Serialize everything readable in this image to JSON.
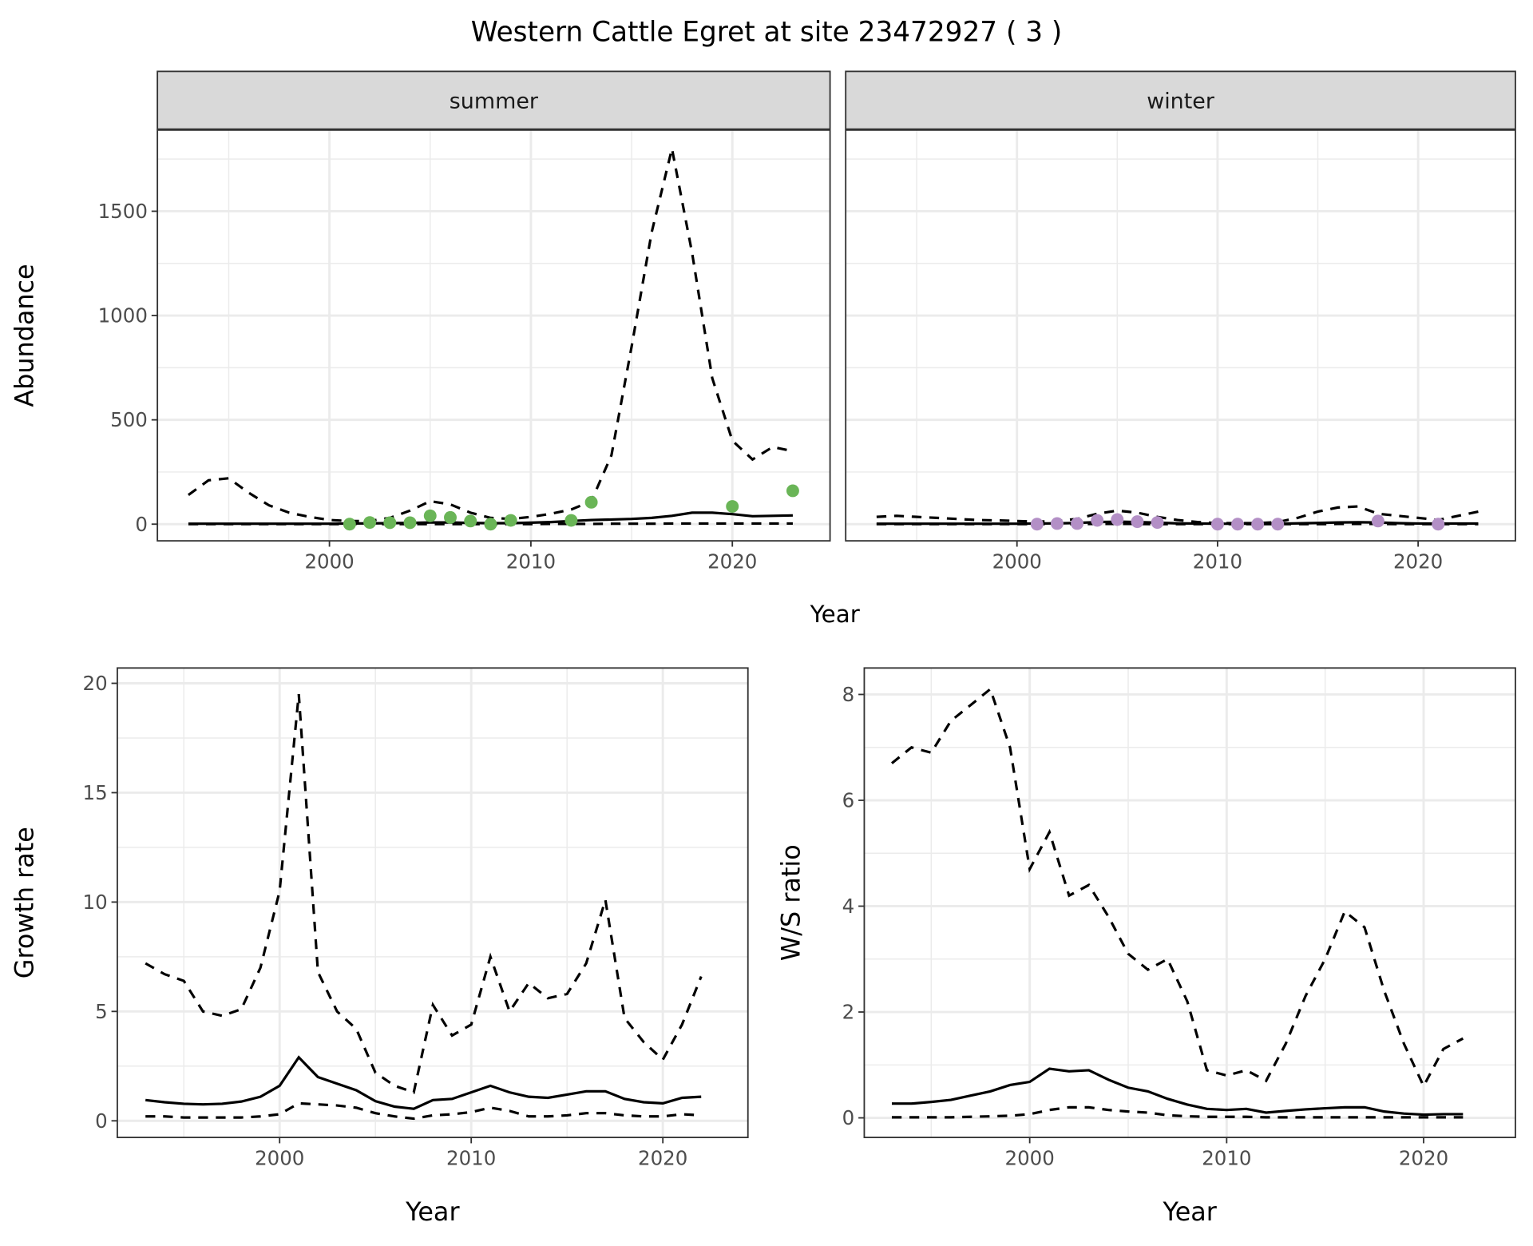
{
  "title": "Western Cattle Egret at site 23472927 ( 3 )",
  "colors": {
    "summer": "#6ab557",
    "winter": "#b38fc6",
    "line": "#000000",
    "grid": "#ebebeb",
    "strip": "#d9d9d9"
  },
  "shared_xlabel": "Year",
  "chart_data": [
    {
      "type": "line",
      "panel": "summer",
      "strip": "summer",
      "ylabel": "Abundance",
      "xlabel": "",
      "xlim": [
        1991.46,
        2024.85
      ],
      "ylim": [
        -80,
        1889
      ],
      "xticks": [
        2000,
        2010,
        2020
      ],
      "yticks": [
        0,
        500,
        1000,
        1500
      ],
      "x": [
        1993,
        1994,
        1995,
        1996,
        1997,
        1998,
        1999,
        2000,
        2001,
        2002,
        2003,
        2004,
        2005,
        2006,
        2007,
        2008,
        2009,
        2010,
        2011,
        2012,
        2013,
        2014,
        2015,
        2016,
        2017,
        2018,
        2019,
        2020,
        2021,
        2022,
        2023
      ],
      "series": [
        {
          "name": "upper",
          "style": "dashed",
          "values": [
            140,
            210,
            220,
            150,
            90,
            55,
            35,
            20,
            15,
            15,
            30,
            65,
            110,
            95,
            55,
            30,
            25,
            35,
            50,
            70,
            110,
            330,
            850,
            1400,
            1800,
            1300,
            700,
            400,
            310,
            370,
            350
          ]
        },
        {
          "name": "estimate",
          "style": "solid",
          "values": [
            2,
            2,
            2,
            2,
            2,
            2,
            2,
            2,
            3,
            4,
            5,
            6,
            8,
            8,
            6,
            5,
            5,
            7,
            10,
            15,
            20,
            22,
            25,
            30,
            40,
            55,
            55,
            48,
            38,
            40,
            42
          ]
        },
        {
          "name": "lower",
          "style": "dashed",
          "values": [
            0,
            0,
            0,
            0,
            0,
            0,
            0,
            0,
            0,
            0,
            0,
            0,
            0,
            0,
            0,
            0,
            0,
            0,
            1,
            1,
            1,
            2,
            2,
            2,
            3,
            3,
            3,
            3,
            3,
            3,
            3
          ]
        }
      ],
      "points": {
        "x": [
          2001,
          2002,
          2003,
          2004,
          2005,
          2006,
          2007,
          2008,
          2009,
          2012,
          2013,
          2020,
          2023
        ],
        "y": [
          0,
          8,
          7,
          7,
          40,
          32,
          15,
          0,
          18,
          18,
          105,
          85,
          160
        ]
      }
    },
    {
      "type": "line",
      "panel": "winter",
      "strip": "winter",
      "ylabel": "",
      "xlabel": "",
      "xlim": [
        1991.46,
        2024.85
      ],
      "ylim": [
        -80,
        1889
      ],
      "xticks": [
        2000,
        2010,
        2020
      ],
      "yticks": [
        0,
        500,
        1000,
        1500
      ],
      "x": [
        1993,
        1994,
        1995,
        1996,
        1997,
        1998,
        1999,
        2000,
        2001,
        2002,
        2003,
        2004,
        2005,
        2006,
        2007,
        2008,
        2009,
        2010,
        2011,
        2012,
        2013,
        2014,
        2015,
        2016,
        2017,
        2018,
        2019,
        2020,
        2021,
        2022,
        2023
      ],
      "series": [
        {
          "name": "upper",
          "style": "dashed",
          "values": [
            35,
            40,
            35,
            30,
            25,
            20,
            18,
            15,
            12,
            15,
            25,
            50,
            65,
            55,
            35,
            20,
            10,
            5,
            5,
            5,
            10,
            30,
            60,
            80,
            85,
            50,
            40,
            30,
            20,
            40,
            60
          ]
        },
        {
          "name": "estimate",
          "style": "solid",
          "values": [
            2,
            2,
            2,
            2,
            2,
            2,
            2,
            2,
            3,
            4,
            6,
            10,
            12,
            10,
            7,
            4,
            3,
            2,
            2,
            2,
            2,
            4,
            6,
            8,
            9,
            8,
            5,
            3,
            3,
            3,
            3
          ]
        },
        {
          "name": "lower",
          "style": "dashed",
          "values": [
            0,
            0,
            0,
            0,
            0,
            0,
            0,
            0,
            0,
            0,
            0,
            1,
            1,
            1,
            0,
            0,
            0,
            0,
            0,
            0,
            0,
            0,
            0,
            1,
            1,
            1,
            0,
            0,
            0,
            0,
            0
          ]
        }
      ],
      "points": {
        "x": [
          2001,
          2002,
          2003,
          2004,
          2005,
          2006,
          2007,
          2010,
          2011,
          2012,
          2013,
          2018,
          2021
        ],
        "y": [
          0,
          3,
          3,
          18,
          22,
          12,
          8,
          0,
          0,
          0,
          0,
          15,
          0
        ]
      }
    },
    {
      "type": "line",
      "panel": "growth",
      "ylabel": "Growth rate",
      "xlabel": "Year",
      "xlim": [
        1991.53,
        2024.44
      ],
      "ylim": [
        -0.76,
        20.7
      ],
      "xticks": [
        2000,
        2010,
        2020
      ],
      "yticks": [
        0,
        5,
        10,
        15,
        20
      ],
      "x": [
        1993,
        1994,
        1995,
        1996,
        1997,
        1998,
        1999,
        2000,
        2001,
        2002,
        2003,
        2004,
        2005,
        2006,
        2007,
        2008,
        2009,
        2010,
        2011,
        2012,
        2013,
        2014,
        2015,
        2016,
        2017,
        2018,
        2019,
        2020,
        2021,
        2022
      ],
      "series": [
        {
          "name": "upper",
          "style": "dashed",
          "values": [
            7.2,
            6.7,
            6.4,
            5.0,
            4.8,
            5.1,
            7.0,
            10.5,
            19.5,
            6.8,
            5.0,
            4.2,
            2.2,
            1.6,
            1.3,
            5.3,
            3.9,
            4.4,
            7.5,
            5.0,
            6.3,
            5.6,
            5.8,
            7.2,
            10.1,
            4.7,
            3.6,
            2.8,
            4.4,
            6.6
          ]
        },
        {
          "name": "estimate",
          "style": "solid",
          "values": [
            0.95,
            0.85,
            0.78,
            0.75,
            0.78,
            0.88,
            1.1,
            1.6,
            2.9,
            2.0,
            1.7,
            1.4,
            0.9,
            0.65,
            0.55,
            0.95,
            1.0,
            1.3,
            1.6,
            1.3,
            1.1,
            1.05,
            1.2,
            1.35,
            1.35,
            1.0,
            0.85,
            0.8,
            1.05,
            1.1
          ]
        },
        {
          "name": "lower",
          "style": "dashed",
          "values": [
            0.2,
            0.2,
            0.15,
            0.15,
            0.15,
            0.15,
            0.2,
            0.3,
            0.8,
            0.75,
            0.7,
            0.6,
            0.35,
            0.2,
            0.1,
            0.25,
            0.3,
            0.4,
            0.6,
            0.45,
            0.2,
            0.2,
            0.25,
            0.35,
            0.35,
            0.25,
            0.2,
            0.2,
            0.3,
            0.25
          ]
        }
      ]
    },
    {
      "type": "line",
      "panel": "ratio",
      "ylabel": "W/S ratio",
      "xlabel": "Year",
      "xlim": [
        1991.6,
        2024.66
      ],
      "ylim": [
        -0.37,
        8.5
      ],
      "xticks": [
        2000,
        2010,
        2020
      ],
      "yticks": [
        0,
        2,
        4,
        6,
        8
      ],
      "x": [
        1993,
        1994,
        1995,
        1996,
        1997,
        1998,
        1999,
        2000,
        2001,
        2002,
        2003,
        2004,
        2005,
        2006,
        2007,
        2008,
        2009,
        2010,
        2011,
        2012,
        2013,
        2014,
        2015,
        2016,
        2017,
        2018,
        2019,
        2020,
        2021,
        2022
      ],
      "series": [
        {
          "name": "upper",
          "style": "dashed",
          "values": [
            6.7,
            7.0,
            6.9,
            7.5,
            7.8,
            8.1,
            7.0,
            4.7,
            5.4,
            4.2,
            4.4,
            3.8,
            3.1,
            2.8,
            3.0,
            2.2,
            0.9,
            0.8,
            0.9,
            0.7,
            1.4,
            2.3,
            3.0,
            3.9,
            3.6,
            2.4,
            1.4,
            0.6,
            1.3,
            1.5
          ]
        },
        {
          "name": "estimate",
          "style": "solid",
          "values": [
            0.27,
            0.27,
            0.3,
            0.34,
            0.42,
            0.5,
            0.62,
            0.68,
            0.93,
            0.88,
            0.9,
            0.72,
            0.57,
            0.5,
            0.36,
            0.25,
            0.17,
            0.15,
            0.17,
            0.1,
            0.13,
            0.16,
            0.18,
            0.2,
            0.2,
            0.12,
            0.08,
            0.06,
            0.07,
            0.07
          ]
        },
        {
          "name": "lower",
          "style": "dashed",
          "values": [
            0.01,
            0.01,
            0.01,
            0.01,
            0.02,
            0.03,
            0.04,
            0.07,
            0.15,
            0.2,
            0.2,
            0.15,
            0.12,
            0.1,
            0.05,
            0.03,
            0.02,
            0.02,
            0.02,
            0.01,
            0.01,
            0.01,
            0.01,
            0.01,
            0.01,
            0.01,
            0.01,
            0.01,
            0.01,
            0.01
          ]
        }
      ]
    }
  ]
}
